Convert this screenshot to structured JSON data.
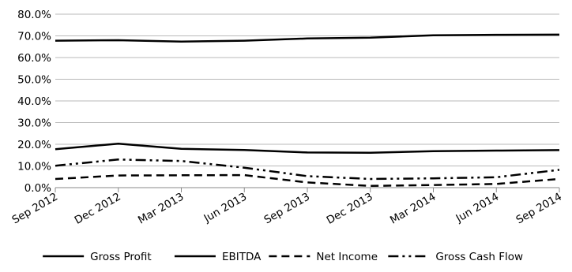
{
  "chart_data": {
    "type": "line",
    "title": "",
    "xlabel": "",
    "ylabel": "",
    "categories": [
      "Sep 2012",
      "Dec 2012",
      "Mar 2013",
      "Jun 2013",
      "Sep 2013",
      "Dec 2013",
      "Mar 2014",
      "Jun 2014",
      "Sep 2014"
    ],
    "yticks": [
      "0.0%",
      "10.0%",
      "20.0%",
      "30.0%",
      "40.0%",
      "50.0%",
      "60.0%",
      "70.0%",
      "80.0%"
    ],
    "ylim": [
      0,
      80
    ],
    "grid": true,
    "legend": "bottom",
    "series": [
      {
        "name": "Gross Profit",
        "dash": "solid",
        "values": [
          67.8,
          68.0,
          67.4,
          67.8,
          68.8,
          69.2,
          70.3,
          70.5,
          70.6
        ]
      },
      {
        "name": "EBITDA",
        "dash": "solid",
        "values": [
          17.7,
          20.3,
          17.9,
          17.4,
          16.2,
          16.1,
          16.8,
          17.1,
          17.3
        ]
      },
      {
        "name": "Net Income",
        "dash": "dashed",
        "values": [
          4.0,
          5.6,
          5.7,
          5.8,
          2.4,
          0.8,
          1.2,
          1.7,
          4.0
        ]
      },
      {
        "name": "Gross Cash Flow",
        "dash": "dashdotdot",
        "values": [
          10.1,
          13.0,
          12.3,
          9.2,
          5.3,
          4.0,
          4.3,
          4.8,
          8.2
        ]
      }
    ]
  }
}
